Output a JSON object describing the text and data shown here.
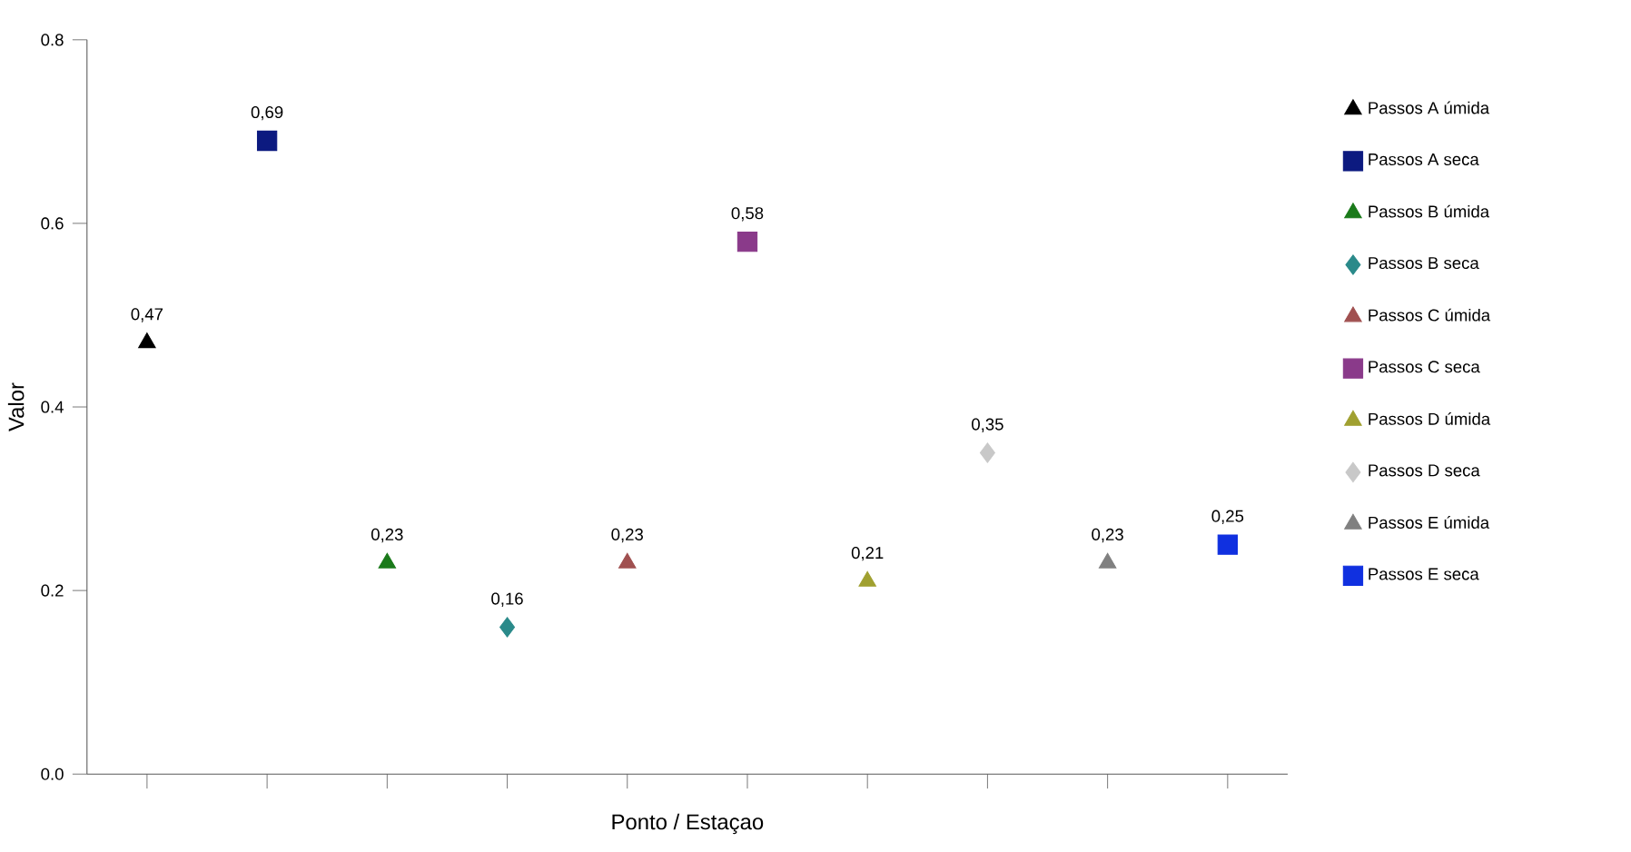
{
  "chart_data": {
    "type": "scatter",
    "xlabel": "Ponto / Estaçao",
    "ylabel": "Valor",
    "categories": [
      null,
      null,
      null,
      null,
      null,
      null,
      null,
      null,
      null,
      null
    ],
    "ylim": [
      0,
      0.8
    ],
    "yticks": [
      {
        "value": 0,
        "label": "0.0"
      },
      {
        "value": 0.2,
        "label": "0.2"
      },
      {
        "value": 0.4,
        "label": "0.4"
      },
      {
        "value": 0.6,
        "label": "0.6"
      },
      {
        "value": 0.8,
        "label": "0.8"
      }
    ],
    "grid": false,
    "legend": "right",
    "series": [
      {
        "name": "Passos A úmida",
        "color": "#000000",
        "marker": "triangle",
        "values": [
          0.47,
          null,
          null,
          null,
          null,
          null,
          null,
          null,
          null,
          null
        ],
        "value_labels": [
          "0,47",
          null,
          null,
          null,
          null,
          null,
          null,
          null,
          null,
          null
        ]
      },
      {
        "name": "Passos A seca",
        "color": "#0c1a80",
        "marker": "square",
        "values": [
          null,
          0.69,
          null,
          null,
          null,
          null,
          null,
          null,
          null,
          null
        ],
        "value_labels": [
          null,
          "0,69",
          null,
          null,
          null,
          null,
          null,
          null,
          null,
          null
        ]
      },
      {
        "name": "Passos B úmida",
        "color": "#1a7a1a",
        "marker": "triangle",
        "values": [
          null,
          null,
          0.23,
          null,
          null,
          null,
          null,
          null,
          null,
          null
        ],
        "value_labels": [
          null,
          null,
          "0,23",
          null,
          null,
          null,
          null,
          null,
          null,
          null
        ]
      },
      {
        "name": "Passos B seca",
        "color": "#2a8a8a",
        "marker": "diamond",
        "values": [
          null,
          null,
          null,
          0.16,
          null,
          null,
          null,
          null,
          null,
          null
        ],
        "value_labels": [
          null,
          null,
          null,
          "0,16",
          null,
          null,
          null,
          null,
          null,
          null
        ]
      },
      {
        "name": "Passos C úmida",
        "color": "#a05050",
        "marker": "triangle",
        "values": [
          null,
          null,
          null,
          null,
          0.23,
          null,
          null,
          null,
          null,
          null
        ],
        "value_labels": [
          null,
          null,
          null,
          null,
          "0,23",
          null,
          null,
          null,
          null,
          null
        ]
      },
      {
        "name": "Passos C seca",
        "color": "#8a3a8a",
        "marker": "square",
        "values": [
          null,
          null,
          null,
          null,
          null,
          0.58,
          null,
          null,
          null,
          null
        ],
        "value_labels": [
          null,
          null,
          null,
          null,
          null,
          "0,58",
          null,
          null,
          null,
          null
        ]
      },
      {
        "name": "Passos D úmida",
        "color": "#a0a030",
        "marker": "triangle",
        "values": [
          null,
          null,
          null,
          null,
          null,
          null,
          0.21,
          null,
          null,
          null
        ],
        "value_labels": [
          null,
          null,
          null,
          null,
          null,
          null,
          "0,21",
          null,
          null,
          null
        ]
      },
      {
        "name": "Passos D seca",
        "color": "#c8c8c8",
        "marker": "diamond",
        "values": [
          null,
          null,
          null,
          null,
          null,
          null,
          null,
          0.35,
          null,
          null
        ],
        "value_labels": [
          null,
          null,
          null,
          null,
          null,
          null,
          null,
          "0,35",
          null,
          null
        ]
      },
      {
        "name": "Passos E úmida",
        "color": "#808080",
        "marker": "triangle",
        "values": [
          null,
          null,
          null,
          null,
          null,
          null,
          null,
          null,
          0.23,
          null
        ],
        "value_labels": [
          null,
          null,
          null,
          null,
          null,
          null,
          null,
          null,
          "0,23",
          null
        ]
      },
      {
        "name": "Passos E seca",
        "color": "#1030e0",
        "marker": "square",
        "values": [
          null,
          null,
          null,
          null,
          null,
          null,
          null,
          null,
          null,
          0.25
        ],
        "value_labels": [
          null,
          null,
          null,
          null,
          null,
          null,
          null,
          null,
          null,
          "0,25"
        ]
      }
    ]
  }
}
